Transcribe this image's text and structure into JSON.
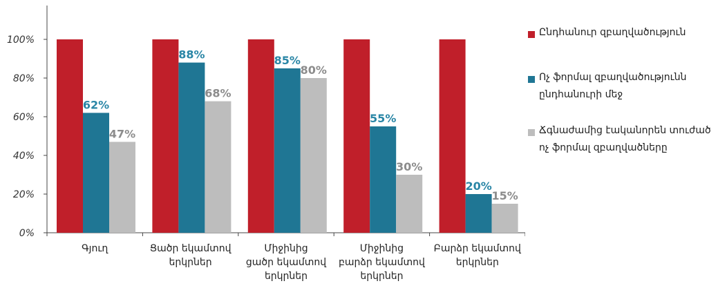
{
  "chart_data": {
    "type": "bar",
    "categories": [
      "Գյուղ",
      "Ցածր եկամտով երկրներ",
      "Միջինից ցածր եկամտով երկրներ",
      "Միջինից բարձր եկամտով երկրներ",
      "Բարձր եկամտով երկրներ"
    ],
    "series": [
      {
        "name": "Ընդհանուր զբաղվածություն",
        "values": [
          100,
          100,
          100,
          100,
          100
        ],
        "labels": [
          "",
          "",
          "",
          "",
          ""
        ],
        "color": "#c01f2a",
        "label_color": "#c01f2a"
      },
      {
        "name": "Ոչ ֆորմալ զբաղվածությունն ընդհանուրի մեջ",
        "values": [
          62,
          88,
          85,
          55,
          20
        ],
        "labels": [
          "62%",
          "88%",
          "85%",
          "55%",
          "20%"
        ],
        "color": "#1f7694",
        "label_color": "#2a86a6"
      },
      {
        "name": "Ճգնաժամից էականորեն տուժած ոչ ֆորմալ զբաղվածները",
        "values": [
          47,
          68,
          80,
          30,
          15
        ],
        "labels": [
          "47%",
          "68%",
          "80%",
          "30%",
          "15%"
        ],
        "color": "#bdbdbd",
        "label_color": "#8c8c8c"
      }
    ],
    "yticks": [
      "0%",
      "20%",
      "40%",
      "60%",
      "80%",
      "100%"
    ],
    "ylim": [
      0,
      100
    ],
    "grid": false,
    "legend": "right",
    "xlabel": "",
    "ylabel": ""
  }
}
